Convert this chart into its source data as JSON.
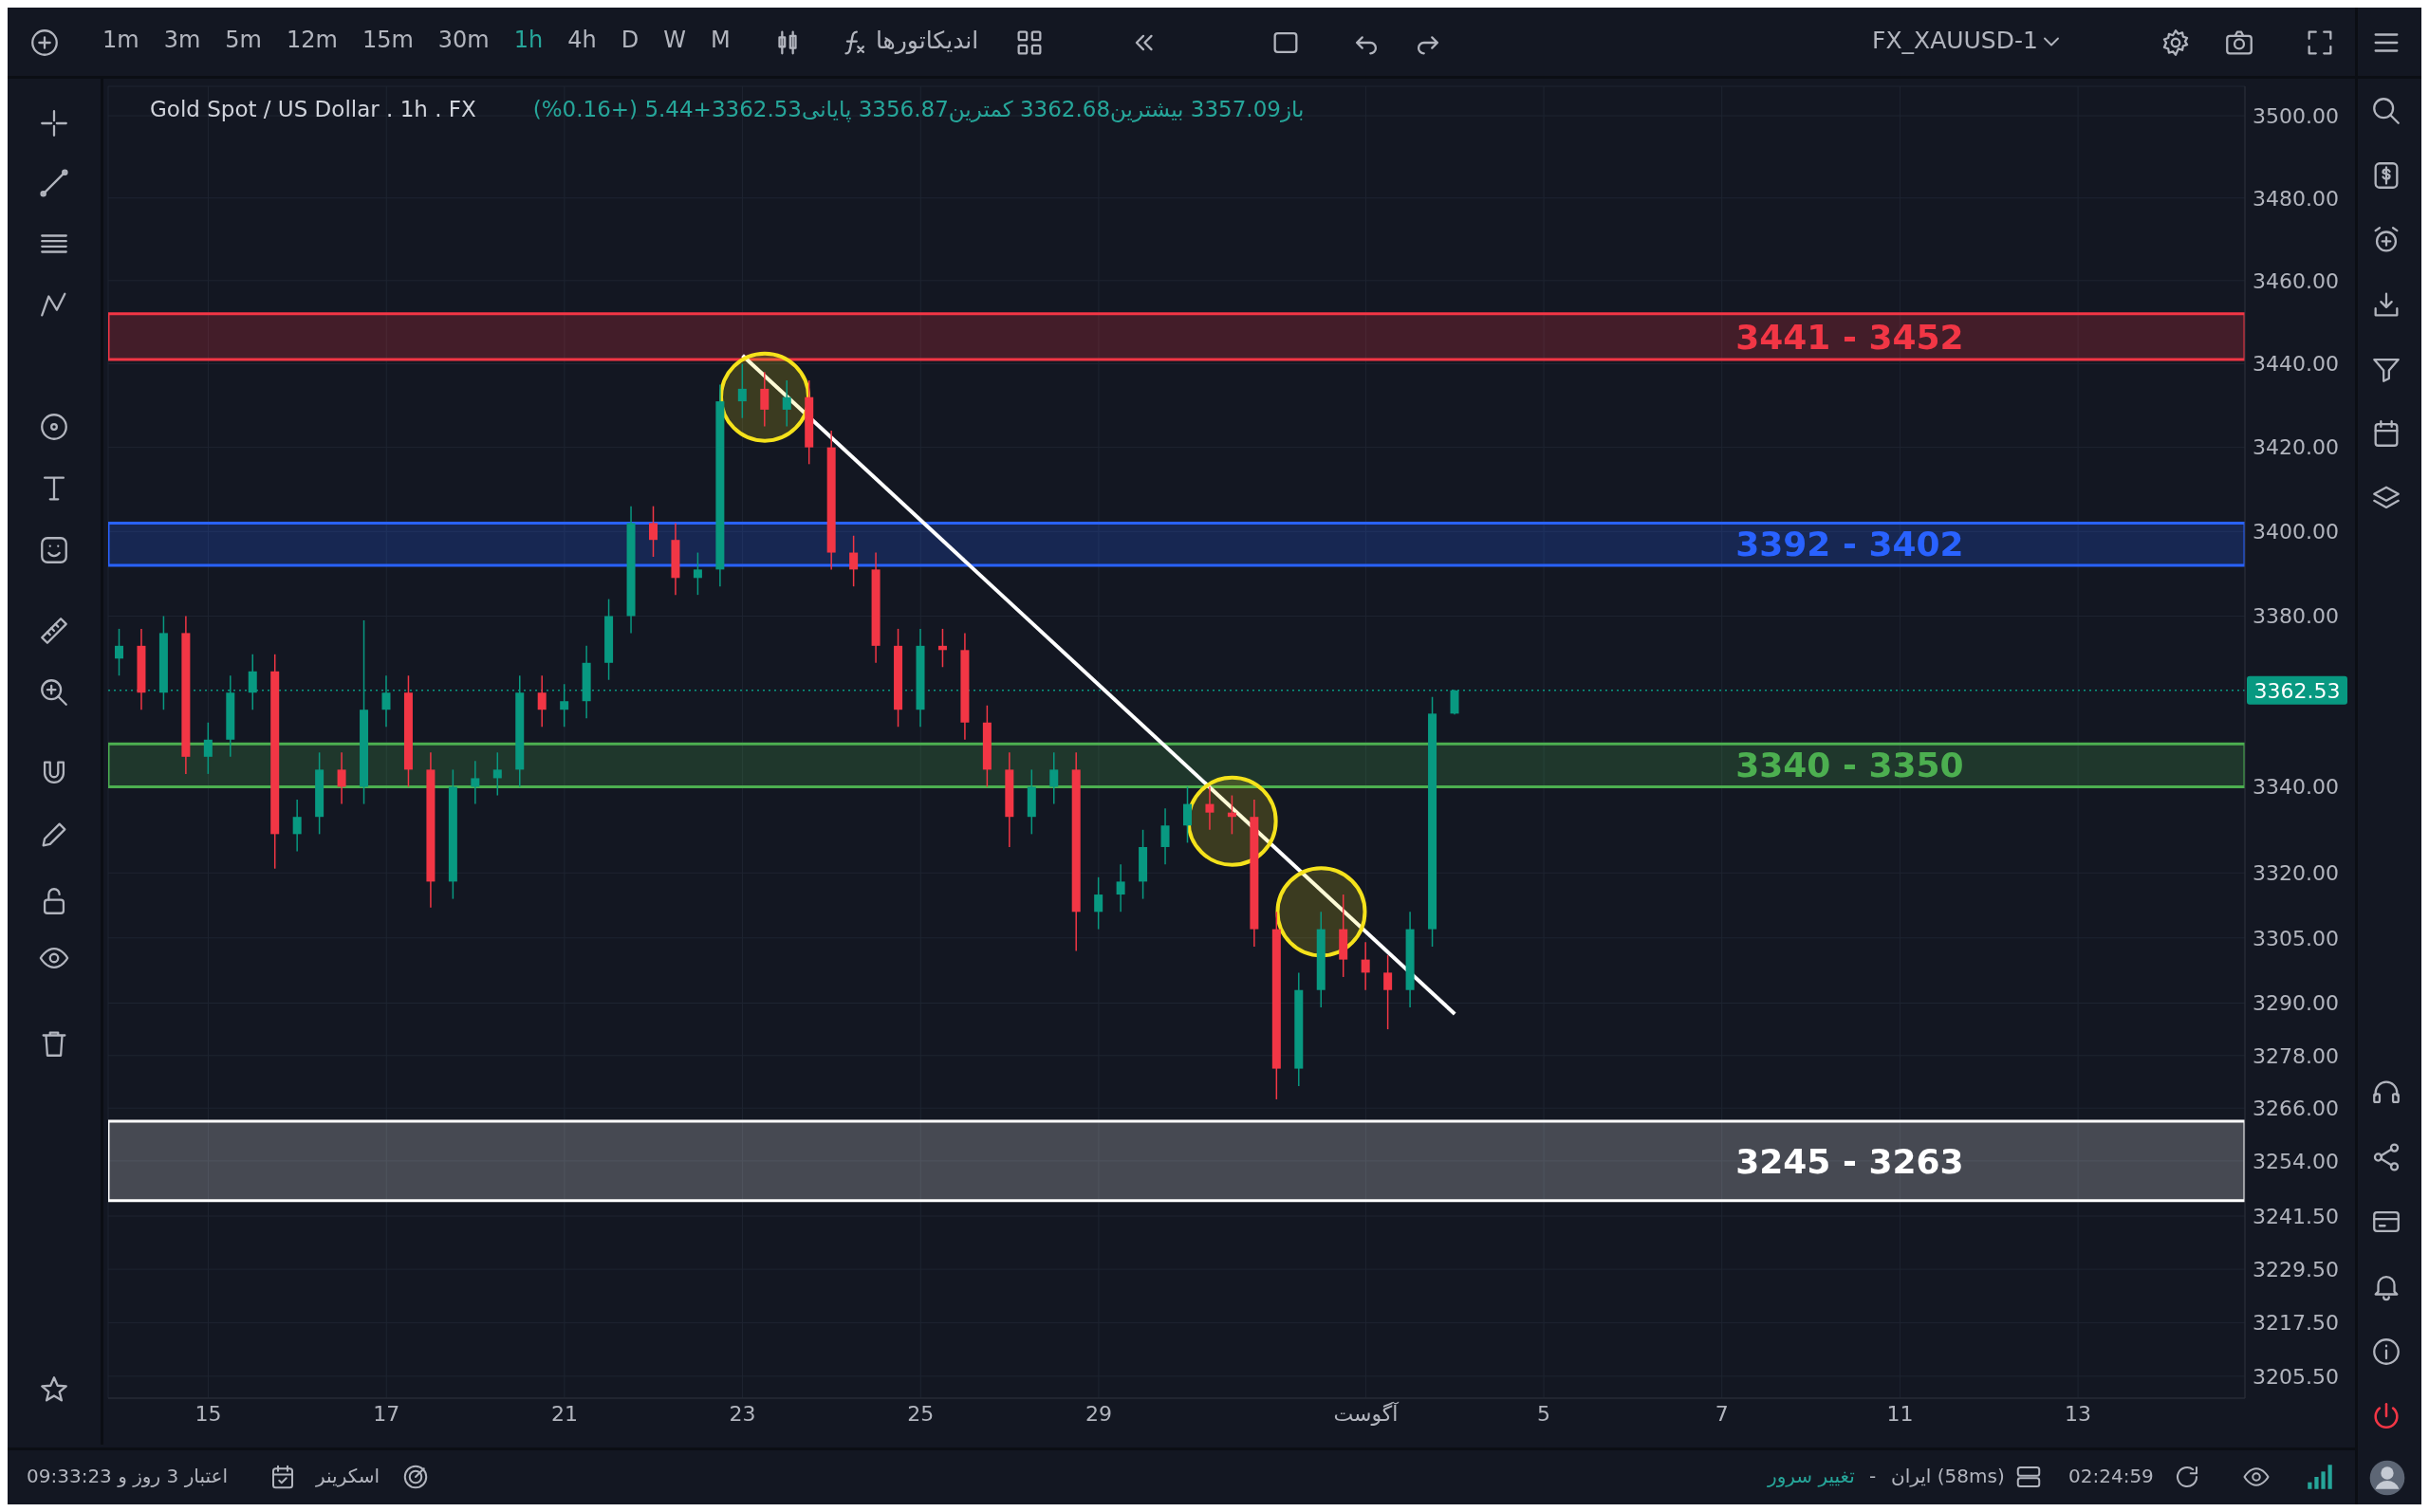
{
  "chart_data": {
    "type": "candlestick",
    "title": "Gold Spot / US Dollar . 1h . FX",
    "subtitle": "باز3357.09 بیشترین3362.68 کمترین3356.87 پایانی3362.53+5.44 (+0.16%)",
    "annotations": [
      "1m",
      "3m",
      "5m",
      "12m",
      "15m",
      "30m",
      "1h",
      "4h",
      "D",
      "W",
      "M",
      "اندیکاتورها",
      "FX_XAUUSD-1",
      "اعتبار 3 روز و 09:33:23",
      "اسکرینر",
      "تغییر سرور",
      "-",
      "ایران (58ms)",
      "02:24:59"
    ],
    "categories": [
      null,
      null,
      null,
      null,
      "15",
      null,
      null,
      null,
      null,
      null,
      null,
      null,
      "17",
      null,
      null,
      null,
      null,
      null,
      null,
      null,
      "21",
      null,
      null,
      null,
      null,
      null,
      null,
      null,
      "23",
      null,
      null,
      null,
      null,
      null,
      null,
      null,
      "25",
      null,
      null,
      null,
      null,
      null,
      null,
      null,
      "29",
      null,
      null,
      null,
      null,
      null,
      null,
      null,
      null,
      null,
      null,
      null,
      "آگوست",
      null,
      null,
      null,
      null,
      null,
      null,
      null,
      "5",
      null,
      null,
      null,
      null,
      null,
      null,
      null,
      "7",
      null,
      null,
      null,
      null,
      null,
      null,
      null,
      "11",
      null,
      null,
      null,
      null,
      null,
      null,
      null,
      "13",
      null,
      null,
      null,
      null,
      null,
      null,
      null
    ],
    "series": [
      {
        "ohlc": [
          [
            3370,
            3377,
            3366,
            3373
          ],
          [
            3373,
            3377,
            3358,
            3362
          ],
          [
            3362,
            3380,
            3358,
            3376
          ],
          [
            3376,
            3380,
            3343,
            3347
          ],
          [
            3347,
            3355,
            3343,
            3351
          ],
          [
            3351,
            3366,
            3347,
            3362
          ],
          [
            3362,
            3371,
            3358,
            3367
          ],
          [
            3367,
            3371,
            3321,
            3329
          ],
          [
            3329,
            3337,
            3325,
            3333
          ],
          [
            3333,
            3348,
            3329,
            3344
          ],
          [
            3344,
            3348,
            3336,
            3340
          ],
          [
            3340,
            3379,
            3336,
            3358
          ],
          [
            3358,
            3366,
            3354,
            3362
          ],
          [
            3362,
            3366,
            3340,
            3344
          ],
          [
            3344,
            3348,
            3312,
            3318
          ],
          [
            3318,
            3344,
            3314,
            3340
          ],
          [
            3340,
            3346,
            3336,
            3342
          ],
          [
            3342,
            3348,
            3338,
            3344
          ],
          [
            3344,
            3366,
            3340,
            3362
          ],
          [
            3362,
            3366,
            3354,
            3358
          ],
          [
            3358,
            3364,
            3354,
            3360
          ],
          [
            3360,
            3373,
            3356,
            3369
          ],
          [
            3369,
            3384,
            3365,
            3380
          ],
          [
            3380,
            3406,
            3376,
            3402
          ],
          [
            3402,
            3406,
            3394,
            3398
          ],
          [
            3398,
            3402,
            3385,
            3389
          ],
          [
            3389,
            3395,
            3385,
            3391
          ],
          [
            3391,
            3435,
            3387,
            3431
          ],
          [
            3431,
            3440,
            3427,
            3434
          ],
          [
            3434,
            3438,
            3425,
            3429
          ],
          [
            3429,
            3436,
            3425,
            3432
          ],
          [
            3432,
            3436,
            3416,
            3420
          ],
          [
            3420,
            3424,
            3391,
            3395
          ],
          [
            3395,
            3399,
            3387,
            3391
          ],
          [
            3391,
            3395,
            3369,
            3373
          ],
          [
            3373,
            3377,
            3354,
            3358
          ],
          [
            3358,
            3377,
            3354,
            3373
          ],
          [
            3373,
            3377,
            3368,
            3372
          ],
          [
            3372,
            3376,
            3351,
            3355
          ],
          [
            3355,
            3359,
            3340,
            3344
          ],
          [
            3344,
            3348,
            3326,
            3333
          ],
          [
            3333,
            3344,
            3329,
            3340
          ],
          [
            3340,
            3348,
            3336,
            3344
          ],
          [
            3344,
            3348,
            3302,
            3311
          ],
          [
            3311,
            3319,
            3307,
            3315
          ],
          [
            3315,
            3322,
            3311,
            3318
          ],
          [
            3318,
            3330,
            3314,
            3326
          ],
          [
            3326,
            3335,
            3322,
            3331
          ],
          [
            3331,
            3340,
            3327,
            3336
          ],
          [
            3336,
            3340,
            3330,
            3334
          ],
          [
            3334,
            3338,
            3329,
            3333
          ],
          [
            3333,
            3337,
            3303,
            3307
          ],
          [
            3307,
            3311,
            3268,
            3275
          ],
          [
            3275,
            3297,
            3271,
            3293
          ],
          [
            3293,
            3311,
            3289,
            3307
          ],
          [
            3307,
            3315,
            3296,
            3300
          ],
          [
            3300,
            3304,
            3293,
            3297
          ],
          [
            3297,
            3301,
            3284,
            3293
          ],
          [
            3293,
            3311,
            3289,
            3307
          ],
          [
            3307,
            3361,
            3303,
            3357.09
          ],
          [
            3357.09,
            3362.68,
            3356.87,
            3362.53
          ],
          null,
          null,
          null,
          null,
          null,
          null,
          null,
          null,
          null,
          null,
          null,
          null,
          null,
          null,
          null,
          null,
          null,
          null,
          null,
          null,
          null,
          null,
          null,
          null,
          null,
          null,
          null,
          null,
          null,
          null,
          null,
          null,
          null,
          null,
          null
        ],
        "colors": [
          "#089981",
          "#f23645",
          "#089981",
          "#f23645",
          "#089981",
          "#089981",
          "#089981",
          "#f23645",
          "#089981",
          "#089981",
          "#f23645",
          "#089981",
          "#089981",
          "#f23645",
          "#f23645",
          "#089981",
          "#089981",
          "#089981",
          "#089981",
          "#f23645",
          "#089981",
          "#089981",
          "#089981",
          "#089981",
          "#f23645",
          "#f23645",
          "#089981",
          "#089981",
          "#089981",
          "#f23645",
          "#089981",
          "#f23645",
          "#f23645",
          "#f23645",
          "#f23645",
          "#f23645",
          "#089981",
          "#f23645",
          "#f23645",
          "#f23645",
          "#f23645",
          "#089981",
          "#089981",
          "#f23645",
          "#089981",
          "#089981",
          "#089981",
          "#089981",
          "#089981",
          "#f23645",
          "#f23645",
          "#f23645",
          "#f23645",
          "#089981",
          "#089981",
          "#f23645",
          "#f23645",
          "#f23645",
          "#089981",
          "#089981",
          "#089981",
          null,
          null,
          null,
          null,
          null,
          null,
          null,
          null,
          null,
          null,
          null,
          null,
          null,
          null,
          null,
          null,
          null,
          null,
          null,
          null,
          null,
          null,
          null,
          null,
          null,
          null,
          null,
          null,
          null,
          null,
          null,
          null,
          null,
          null,
          null
        ]
      },
      {
        "type": "line",
        "color": "#ffffff",
        "values": [
          null,
          null,
          null,
          null,
          null,
          null,
          null,
          null,
          null,
          null,
          null,
          null,
          null,
          null,
          null,
          null,
          null,
          null,
          null,
          null,
          null,
          null,
          null,
          null,
          null,
          null,
          null,
          null,
          3442,
          null,
          null,
          null,
          null,
          null,
          null,
          null,
          null,
          null,
          null,
          null,
          null,
          null,
          null,
          null,
          null,
          null,
          null,
          null,
          null,
          null,
          null,
          null,
          null,
          null,
          null,
          null,
          null,
          null,
          null,
          null,
          3287.5,
          null,
          null,
          null,
          null,
          null,
          null,
          null,
          null,
          null,
          null,
          null,
          null,
          null,
          null,
          null,
          null,
          null,
          null,
          null,
          null,
          null,
          null,
          null,
          null,
          null,
          null,
          null,
          null,
          null,
          null,
          null,
          null,
          null,
          null,
          null
        ]
      },
      {
        "type": "scatter",
        "color": "#f5e21b",
        "marker": "circle",
        "values": [
          null,
          null,
          null,
          null,
          null,
          null,
          null,
          null,
          null,
          null,
          null,
          null,
          null,
          null,
          null,
          null,
          null,
          null,
          null,
          null,
          null,
          null,
          null,
          null,
          null,
          null,
          null,
          null,
          null,
          3432,
          null,
          null,
          null,
          null,
          null,
          null,
          null,
          null,
          null,
          null,
          null,
          null,
          null,
          null,
          null,
          null,
          null,
          null,
          null,
          null,
          3332,
          null,
          null,
          null,
          3311,
          null,
          null,
          null,
          null,
          null,
          null,
          null,
          null,
          null,
          null,
          null,
          null,
          null,
          null,
          null,
          null,
          null,
          null,
          null,
          null,
          null,
          null,
          null,
          null,
          null,
          null,
          null,
          null,
          null,
          null,
          null,
          null,
          null,
          null,
          null,
          null,
          null,
          null,
          null,
          null,
          null
        ]
      }
    ],
    "bands": [
      {
        "axis": "y",
        "from": 3441,
        "to": 3452,
        "label": "3441 - 3452",
        "color": "#f23645"
      },
      {
        "axis": "y",
        "from": 3392,
        "to": 3402,
        "label": "3392 - 3402",
        "color": "#2962ff"
      },
      {
        "axis": "y",
        "from": 3340,
        "to": 3350,
        "label": "3340 - 3350",
        "color": "#4caf50"
      },
      {
        "axis": "y",
        "from": 3245,
        "to": 3263,
        "label": "3245 - 3263",
        "color": "#ffffff"
      }
    ],
    "ref_lines": [
      {
        "axis": "y",
        "value": 3362.53,
        "label": "3362.53",
        "color": "#089981",
        "line_style": "dotted"
      }
    ],
    "ylim": [
      3200.6,
      3507.2
    ],
    "yticks": [
      {
        "value": 3500,
        "label": "3500.00"
      },
      {
        "value": 3480,
        "label": "3480.00"
      },
      {
        "value": 3460,
        "label": "3460.00"
      },
      {
        "value": 3440,
        "label": "3440.00"
      },
      {
        "value": 3420,
        "label": "3420.00"
      },
      {
        "value": 3400,
        "label": "3400.00"
      },
      {
        "value": 3380,
        "label": "3380.00"
      },
      {
        "value": 3340,
        "label": "3340.00"
      },
      {
        "value": 3320,
        "label": "3320.00"
      },
      {
        "value": 3305,
        "label": "3305.00"
      },
      {
        "value": 3290,
        "label": "3290.00"
      },
      {
        "value": 3278,
        "label": "3278.00"
      },
      {
        "value": 3266,
        "label": "3266.00"
      },
      {
        "value": 3254,
        "label": "3254.00"
      },
      {
        "value": 3241.5,
        "label": "3241.50"
      },
      {
        "value": 3229.5,
        "label": "3229.50"
      },
      {
        "value": 3217.5,
        "label": "3217.50"
      },
      {
        "value": 3205.5,
        "label": "3205.50"
      }
    ],
    "log": "y",
    "grid": true
  }
}
